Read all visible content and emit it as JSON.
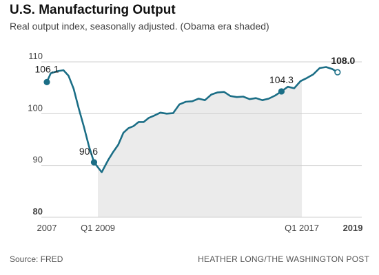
{
  "header": {
    "title": "U.S. Manufacturing Output",
    "subtitle": "Real output index, seasonally adjusted. (Obama era shaded)"
  },
  "footer": {
    "source": "Source: FRED",
    "credit": "HEATHER LONG/THE WASHINGTON POST"
  },
  "colors": {
    "line": "#1b6e86",
    "shade": "#ebebeb",
    "grid": "#cfcfcf",
    "axis_text": "#444444"
  },
  "chart_data": {
    "type": "line",
    "title": "U.S. Manufacturing Output",
    "subtitle": "Real output index, seasonally adjusted. (Obama era shaded)",
    "xlabel": "",
    "ylabel": "",
    "ylim": [
      80,
      110
    ],
    "xlim": [
      2007.0,
      2019.35
    ],
    "y_ticks": [
      80,
      90,
      100,
      110
    ],
    "x_ticks": [
      {
        "x": 2007.0,
        "label": "2007",
        "bold": false
      },
      {
        "x": 2009.0,
        "label": "Q1 2009",
        "bold": false
      },
      {
        "x": 2017.0,
        "label": "Q1 2017",
        "bold": false
      },
      {
        "x": 2019.0,
        "label": "2019",
        "bold": true
      }
    ],
    "grid": true,
    "shaded_region": {
      "label": "Obama era",
      "start": 2009.0,
      "end": 2017.0
    },
    "series": [
      {
        "values": [
          [
            2007.0,
            106.1
          ],
          [
            2007.15,
            107.8
          ],
          [
            2007.4,
            108.2
          ],
          [
            2007.65,
            108.4
          ],
          [
            2007.85,
            107.3
          ],
          [
            2008.05,
            104.8
          ],
          [
            2008.25,
            101.0
          ],
          [
            2008.45,
            97.5
          ],
          [
            2008.65,
            93.7
          ],
          [
            2008.85,
            90.6
          ],
          [
            2009.15,
            88.7
          ],
          [
            2009.4,
            91.0
          ],
          [
            2009.6,
            92.6
          ],
          [
            2009.8,
            94.0
          ],
          [
            2010.0,
            96.3
          ],
          [
            2010.2,
            97.2
          ],
          [
            2010.4,
            97.6
          ],
          [
            2010.6,
            98.4
          ],
          [
            2010.8,
            98.4
          ],
          [
            2011.0,
            99.2
          ],
          [
            2011.2,
            99.6
          ],
          [
            2011.45,
            100.2
          ],
          [
            2011.7,
            100.0
          ],
          [
            2011.95,
            100.1
          ],
          [
            2012.2,
            101.8
          ],
          [
            2012.45,
            102.3
          ],
          [
            2012.7,
            102.4
          ],
          [
            2012.95,
            102.9
          ],
          [
            2013.2,
            102.6
          ],
          [
            2013.45,
            103.7
          ],
          [
            2013.7,
            104.1
          ],
          [
            2013.95,
            104.2
          ],
          [
            2014.2,
            103.4
          ],
          [
            2014.45,
            103.2
          ],
          [
            2014.7,
            103.3
          ],
          [
            2014.95,
            102.8
          ],
          [
            2015.2,
            103.0
          ],
          [
            2015.45,
            102.6
          ],
          [
            2015.7,
            102.9
          ],
          [
            2015.95,
            103.5
          ],
          [
            2016.2,
            104.3
          ],
          [
            2016.45,
            105.2
          ],
          [
            2016.7,
            104.9
          ],
          [
            2016.95,
            106.3
          ],
          [
            2017.2,
            106.9
          ],
          [
            2017.45,
            107.6
          ],
          [
            2017.7,
            108.8
          ],
          [
            2017.95,
            109.0
          ],
          [
            2018.2,
            108.6
          ],
          [
            2018.4,
            108.0
          ]
        ]
      }
    ],
    "annotations": [
      {
        "x": 2007.0,
        "y": 106.1,
        "label": "106.1",
        "marker": "filled",
        "bold": false
      },
      {
        "x": 2008.85,
        "y": 90.6,
        "label": "90.6",
        "marker": "filled",
        "bold": false
      },
      {
        "x": 2016.2,
        "y": 104.3,
        "label": "104.3",
        "marker": "filled",
        "bold": false
      },
      {
        "x": 2018.4,
        "y": 108.0,
        "label": "108.0",
        "marker": "open",
        "bold": true
      }
    ]
  }
}
